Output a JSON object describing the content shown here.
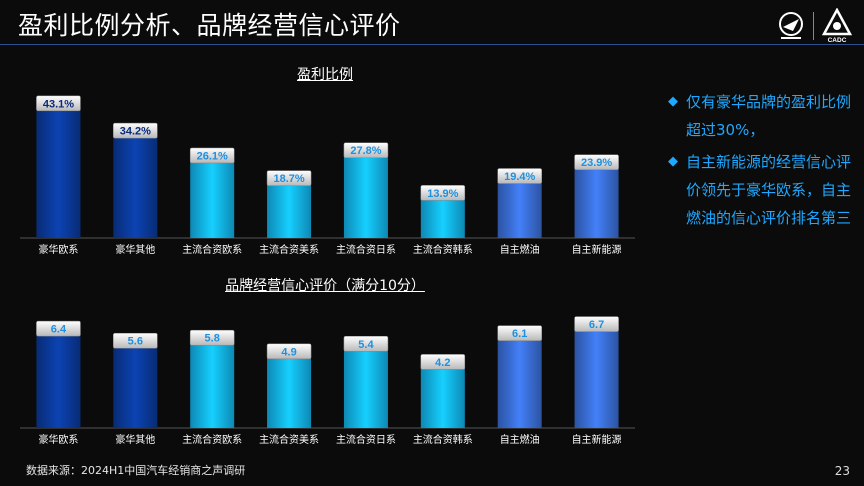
{
  "header": {
    "title": "盈利比例分析、品牌经营信心评价"
  },
  "chart_data": [
    {
      "type": "bar",
      "title": "盈利比例",
      "categories": [
        "豪华欧系",
        "豪华其他",
        "主流合资欧系",
        "主流合资美系",
        "主流合资日系",
        "主流合资韩系",
        "自主燃油",
        "自主新能源"
      ],
      "values": [
        43.1,
        34.2,
        26.1,
        18.7,
        27.8,
        13.9,
        19.4,
        23.9
      ],
      "labels": [
        "43.1%",
        "34.2%",
        "26.1%",
        "18.7%",
        "27.8%",
        "13.9%",
        "19.4%",
        "23.9%"
      ],
      "ylim": [
        0,
        45
      ],
      "colors": [
        "#0a3a9c",
        "#0a3a9c",
        "#13b5f0",
        "#13b5f0",
        "#13b5f0",
        "#13b5f0",
        "#3a6fd8",
        "#3a6fd8"
      ]
    },
    {
      "type": "bar",
      "title": "品牌经营信心评价（满分10分）",
      "categories": [
        "豪华欧系",
        "豪华其他",
        "主流合资欧系",
        "主流合资美系",
        "主流合资日系",
        "主流合资韩系",
        "自主燃油",
        "自主新能源"
      ],
      "values": [
        6.4,
        5.6,
        5.8,
        4.9,
        5.4,
        4.2,
        6.1,
        6.7
      ],
      "labels": [
        "6.4",
        "5.6",
        "5.8",
        "4.9",
        "5.4",
        "4.2",
        "6.1",
        "6.7"
      ],
      "ylim": [
        0,
        7.2
      ],
      "colors": [
        "#0a3a9c",
        "#0a3a9c",
        "#13b5f0",
        "#13b5f0",
        "#13b5f0",
        "#13b5f0",
        "#3a6fd8",
        "#3a6fd8"
      ]
    }
  ],
  "notes": [
    "仅有豪华品牌的盈利比例超过30%，",
    "自主新能源的经营信心评价领先于豪华欧系，自主燃油的信心评价排名第三"
  ],
  "footer": {
    "source": "数据来源：2024H1中国汽车经销商之声调研",
    "page": "23"
  },
  "logos": {
    "right_text": "CADC"
  }
}
